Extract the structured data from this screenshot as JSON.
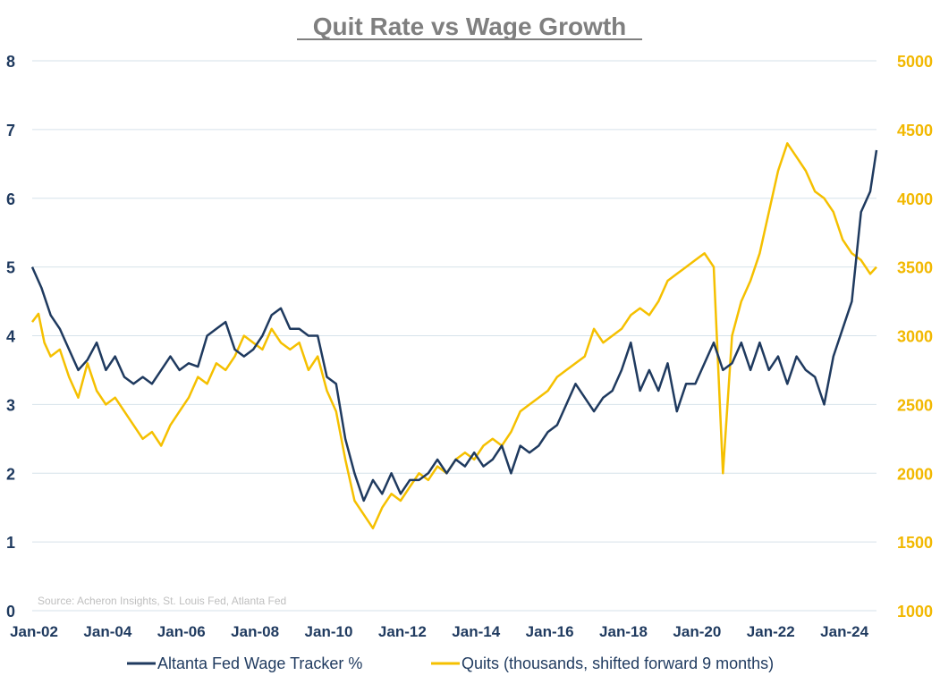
{
  "chart_data": {
    "type": "line",
    "title": "Quit Rate vs Wage Growth",
    "source": "Source: Acheron Insights, St. Louis Fed, Atlanta Fed",
    "x_axis": {
      "range": [
        2002.0,
        2024.92
      ],
      "ticks": [
        {
          "value": 2002,
          "label": "Jan-02"
        },
        {
          "value": 2004,
          "label": "Jan-04"
        },
        {
          "value": 2006,
          "label": "Jan-06"
        },
        {
          "value": 2008,
          "label": "Jan-08"
        },
        {
          "value": 2010,
          "label": "Jan-10"
        },
        {
          "value": 2012,
          "label": "Jan-12"
        },
        {
          "value": 2014,
          "label": "Jan-14"
        },
        {
          "value": 2016,
          "label": "Jan-16"
        },
        {
          "value": 2018,
          "label": "Jan-18"
        },
        {
          "value": 2020,
          "label": "Jan-20"
        },
        {
          "value": 2022,
          "label": "Jan-22"
        },
        {
          "value": 2024,
          "label": "Jan-24"
        }
      ]
    },
    "y_left": {
      "range": [
        0,
        8
      ],
      "ticks": [
        "0",
        "1",
        "2",
        "3",
        "4",
        "5",
        "6",
        "7",
        "8"
      ]
    },
    "y_right": {
      "range": [
        1000,
        5000
      ],
      "ticks": [
        "1000",
        "1500",
        "2000",
        "2500",
        "3000",
        "3500",
        "4000",
        "4500",
        "5000"
      ]
    },
    "grid": true,
    "legend_position": "bottom",
    "series": [
      {
        "name": "Altanta Fed Wage Tracker %",
        "axis": "left",
        "color": "#1f3a5f",
        "points": [
          [
            2002.0,
            5.0
          ],
          [
            2002.25,
            4.7
          ],
          [
            2002.5,
            4.3
          ],
          [
            2002.75,
            4.1
          ],
          [
            2003.0,
            3.8
          ],
          [
            2003.25,
            3.5
          ],
          [
            2003.5,
            3.65
          ],
          [
            2003.75,
            3.9
          ],
          [
            2004.0,
            3.5
          ],
          [
            2004.25,
            3.7
          ],
          [
            2004.5,
            3.4
          ],
          [
            2004.75,
            3.3
          ],
          [
            2005.0,
            3.4
          ],
          [
            2005.25,
            3.3
          ],
          [
            2005.5,
            3.5
          ],
          [
            2005.75,
            3.7
          ],
          [
            2006.0,
            3.5
          ],
          [
            2006.25,
            3.6
          ],
          [
            2006.5,
            3.55
          ],
          [
            2006.75,
            4.0
          ],
          [
            2007.0,
            4.1
          ],
          [
            2007.25,
            4.2
          ],
          [
            2007.5,
            3.8
          ],
          [
            2007.75,
            3.7
          ],
          [
            2008.0,
            3.8
          ],
          [
            2008.25,
            4.0
          ],
          [
            2008.5,
            4.3
          ],
          [
            2008.75,
            4.4
          ],
          [
            2009.0,
            4.1
          ],
          [
            2009.25,
            4.1
          ],
          [
            2009.5,
            4.0
          ],
          [
            2009.75,
            4.0
          ],
          [
            2010.0,
            3.4
          ],
          [
            2010.25,
            3.3
          ],
          [
            2010.5,
            2.5
          ],
          [
            2010.75,
            2.0
          ],
          [
            2011.0,
            1.6
          ],
          [
            2011.25,
            1.9
          ],
          [
            2011.5,
            1.7
          ],
          [
            2011.75,
            2.0
          ],
          [
            2012.0,
            1.7
          ],
          [
            2012.25,
            1.9
          ],
          [
            2012.5,
            1.9
          ],
          [
            2012.75,
            2.0
          ],
          [
            2013.0,
            2.2
          ],
          [
            2013.25,
            2.0
          ],
          [
            2013.5,
            2.2
          ],
          [
            2013.75,
            2.1
          ],
          [
            2014.0,
            2.3
          ],
          [
            2014.25,
            2.1
          ],
          [
            2014.5,
            2.2
          ],
          [
            2014.75,
            2.4
          ],
          [
            2015.0,
            2.0
          ],
          [
            2015.25,
            2.4
          ],
          [
            2015.5,
            2.3
          ],
          [
            2015.75,
            2.4
          ],
          [
            2016.0,
            2.6
          ],
          [
            2016.25,
            2.7
          ],
          [
            2016.5,
            3.0
          ],
          [
            2016.75,
            3.3
          ],
          [
            2017.0,
            3.1
          ],
          [
            2017.25,
            2.9
          ],
          [
            2017.5,
            3.1
          ],
          [
            2017.75,
            3.2
          ],
          [
            2018.0,
            3.5
          ],
          [
            2018.25,
            3.9
          ],
          [
            2018.5,
            3.2
          ],
          [
            2018.75,
            3.5
          ],
          [
            2019.0,
            3.2
          ],
          [
            2019.25,
            3.6
          ],
          [
            2019.5,
            2.9
          ],
          [
            2019.75,
            3.3
          ],
          [
            2020.0,
            3.3
          ],
          [
            2020.25,
            3.6
          ],
          [
            2020.5,
            3.9
          ],
          [
            2020.75,
            3.5
          ],
          [
            2021.0,
            3.6
          ],
          [
            2021.25,
            3.9
          ],
          [
            2021.5,
            3.5
          ],
          [
            2021.75,
            3.9
          ],
          [
            2022.0,
            3.5
          ],
          [
            2022.25,
            3.7
          ],
          [
            2022.5,
            3.3
          ],
          [
            2022.75,
            3.7
          ],
          [
            2023.0,
            3.5
          ],
          [
            2023.25,
            3.4
          ],
          [
            2023.5,
            3.0
          ],
          [
            2023.75,
            3.7
          ],
          [
            2024.0,
            4.1
          ],
          [
            2024.25,
            4.5
          ],
          [
            2024.5,
            5.8
          ],
          [
            2024.75,
            6.1
          ],
          [
            2024.92,
            6.7
          ]
        ]
      },
      {
        "name": "Quits (thousands, shifted forward 9 months)",
        "axis": "right",
        "color": "#f5c000",
        "points": [
          [
            2002.0,
            3100
          ],
          [
            2002.17,
            3160
          ],
          [
            2002.33,
            2950
          ],
          [
            2002.5,
            2850
          ],
          [
            2002.75,
            2900
          ],
          [
            2003.0,
            2700
          ],
          [
            2003.25,
            2550
          ],
          [
            2003.5,
            2800
          ],
          [
            2003.75,
            2600
          ],
          [
            2004.0,
            2500
          ],
          [
            2004.25,
            2550
          ],
          [
            2004.5,
            2450
          ],
          [
            2004.75,
            2350
          ],
          [
            2005.0,
            2250
          ],
          [
            2005.25,
            2300
          ],
          [
            2005.5,
            2200
          ],
          [
            2005.75,
            2350
          ],
          [
            2006.0,
            2450
          ],
          [
            2006.25,
            2550
          ],
          [
            2006.5,
            2700
          ],
          [
            2006.75,
            2650
          ],
          [
            2007.0,
            2800
          ],
          [
            2007.25,
            2750
          ],
          [
            2007.5,
            2850
          ],
          [
            2007.75,
            3000
          ],
          [
            2008.0,
            2950
          ],
          [
            2008.25,
            2900
          ],
          [
            2008.5,
            3050
          ],
          [
            2008.75,
            2950
          ],
          [
            2009.0,
            2900
          ],
          [
            2009.25,
            2950
          ],
          [
            2009.5,
            2750
          ],
          [
            2009.75,
            2850
          ],
          [
            2010.0,
            2600
          ],
          [
            2010.25,
            2450
          ],
          [
            2010.5,
            2100
          ],
          [
            2010.75,
            1800
          ],
          [
            2011.0,
            1700
          ],
          [
            2011.25,
            1600
          ],
          [
            2011.5,
            1750
          ],
          [
            2011.75,
            1850
          ],
          [
            2012.0,
            1800
          ],
          [
            2012.25,
            1900
          ],
          [
            2012.5,
            2000
          ],
          [
            2012.75,
            1950
          ],
          [
            2013.0,
            2050
          ],
          [
            2013.25,
            2000
          ],
          [
            2013.5,
            2100
          ],
          [
            2013.75,
            2150
          ],
          [
            2014.0,
            2100
          ],
          [
            2014.25,
            2200
          ],
          [
            2014.5,
            2250
          ],
          [
            2014.75,
            2200
          ],
          [
            2015.0,
            2300
          ],
          [
            2015.25,
            2450
          ],
          [
            2015.5,
            2500
          ],
          [
            2015.75,
            2550
          ],
          [
            2016.0,
            2600
          ],
          [
            2016.25,
            2700
          ],
          [
            2016.5,
            2750
          ],
          [
            2016.75,
            2800
          ],
          [
            2017.0,
            2850
          ],
          [
            2017.25,
            3050
          ],
          [
            2017.5,
            2950
          ],
          [
            2017.75,
            3000
          ],
          [
            2018.0,
            3050
          ],
          [
            2018.25,
            3150
          ],
          [
            2018.5,
            3200
          ],
          [
            2018.75,
            3150
          ],
          [
            2019.0,
            3250
          ],
          [
            2019.25,
            3400
          ],
          [
            2019.5,
            3450
          ],
          [
            2019.75,
            3500
          ],
          [
            2020.0,
            3550
          ],
          [
            2020.25,
            3600
          ],
          [
            2020.5,
            3500
          ],
          [
            2020.75,
            2000
          ],
          [
            2021.0,
            3000
          ],
          [
            2021.25,
            3250
          ],
          [
            2021.5,
            3400
          ],
          [
            2021.75,
            3600
          ],
          [
            2022.0,
            3900
          ],
          [
            2022.25,
            4200
          ],
          [
            2022.5,
            4400
          ],
          [
            2022.75,
            4300
          ],
          [
            2023.0,
            4200
          ],
          [
            2023.25,
            4050
          ],
          [
            2023.5,
            4000
          ],
          [
            2023.75,
            3900
          ],
          [
            2024.0,
            3700
          ],
          [
            2024.25,
            3600
          ],
          [
            2024.5,
            3550
          ],
          [
            2024.75,
            3450
          ],
          [
            2024.92,
            3500
          ]
        ]
      }
    ]
  }
}
